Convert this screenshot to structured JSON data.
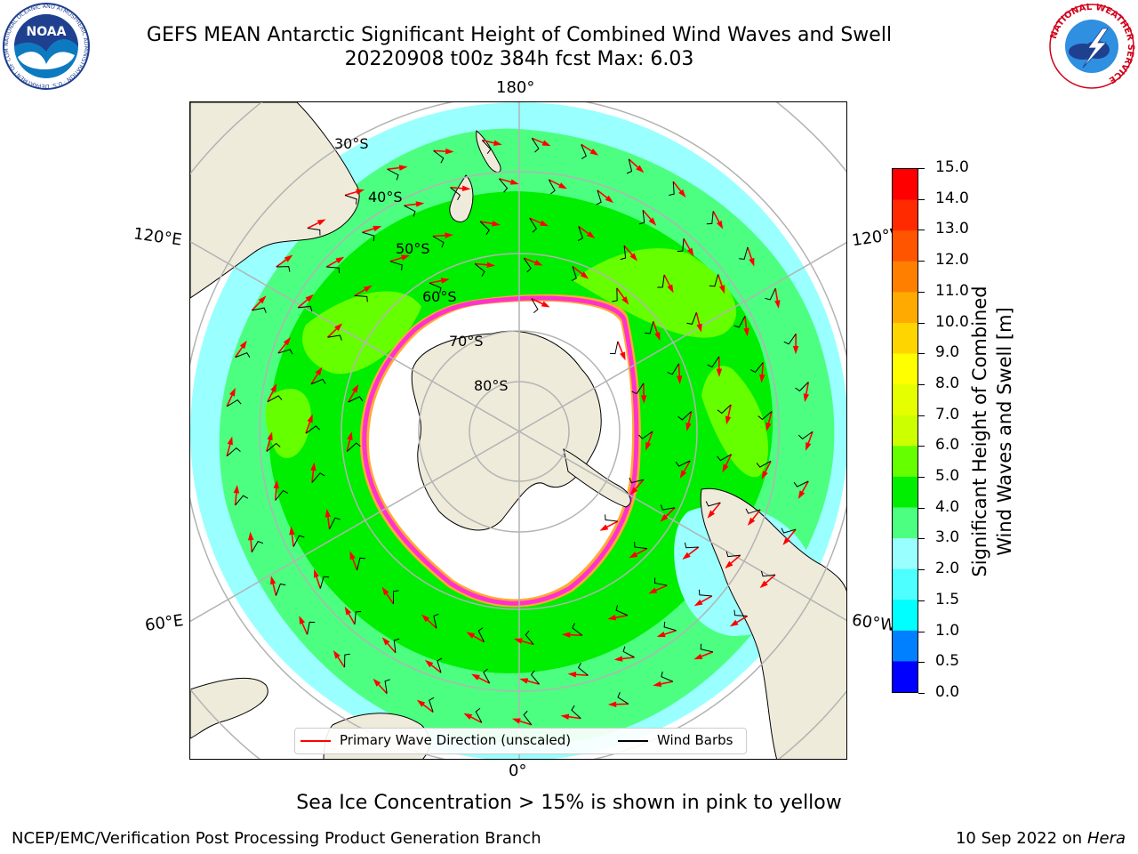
{
  "header": {
    "title_line1": "GEFS MEAN Antarctic Significant Height of Combined Wind Waves and Swell",
    "title_line2": "20220908 t00z 384h fcst   Max: 6.03",
    "left_logo_text": "NOAA",
    "left_logo_ring_text": "NATIONAL OCEANIC AND ATMOSPHERIC ADMINISTRATION · U.S. DEPARTMENT OF COMMERCE",
    "right_logo_ring_text": "NATIONAL WEATHER SERVICE"
  },
  "map": {
    "projection": "south polar stereographic",
    "longitude_labels": {
      "top": "180°",
      "bottom": "0°",
      "upper_left": "120°E",
      "upper_right": "120°W",
      "lower_left": "60°E",
      "lower_right": "60°W"
    },
    "latitude_labels": [
      "30°S",
      "40°S",
      "50°S",
      "60°S",
      "70°S",
      "80°S"
    ],
    "colors": {
      "land": "#efebdb",
      "ocean_low": "#99ffff",
      "ocean_mid": "#4dff80",
      "ocean_high": "#00ee00",
      "ocean_peak": "#66ff00",
      "ice_edge": "#ff33cc",
      "ice_fringe": "#ffaa33",
      "grid": "#b3b3b3",
      "wave_arrow": "#ff0000",
      "wind_barb": "#000000"
    }
  },
  "colorbar": {
    "label_line1": "Significant Height of Combined",
    "label_line2": "Wind Waves and Swell [m]",
    "ticks": [
      "15.0",
      "14.0",
      "13.0",
      "12.0",
      "11.0",
      "10.0",
      "9.0",
      "8.0",
      "7.0",
      "6.0",
      "5.0",
      "4.0",
      "3.0",
      "2.0",
      "1.5",
      "1.0",
      "0.5",
      "0.0"
    ],
    "colors": [
      "#ff0000",
      "#ff2a00",
      "#ff5500",
      "#ff8000",
      "#ffaa00",
      "#ffd500",
      "#ffff00",
      "#e6ff00",
      "#ccff00",
      "#66ff00",
      "#00ee00",
      "#4dff80",
      "#99ffff",
      "#4dffff",
      "#00ffff",
      "#0080ff",
      "#0000ff"
    ]
  },
  "legend": {
    "items": [
      {
        "label": "Primary Wave Direction (unscaled)",
        "color": "#ff0000"
      },
      {
        "label": "Wind Barbs",
        "color": "#000000"
      }
    ]
  },
  "note": "Sea Ice Concentration > 15% is shown in pink to yellow",
  "footer": {
    "left": "NCEP/EMC/Verification Post Processing Product Generation Branch",
    "right_date": "10 Sep 2022 on",
    "right_machine": "Hera"
  }
}
